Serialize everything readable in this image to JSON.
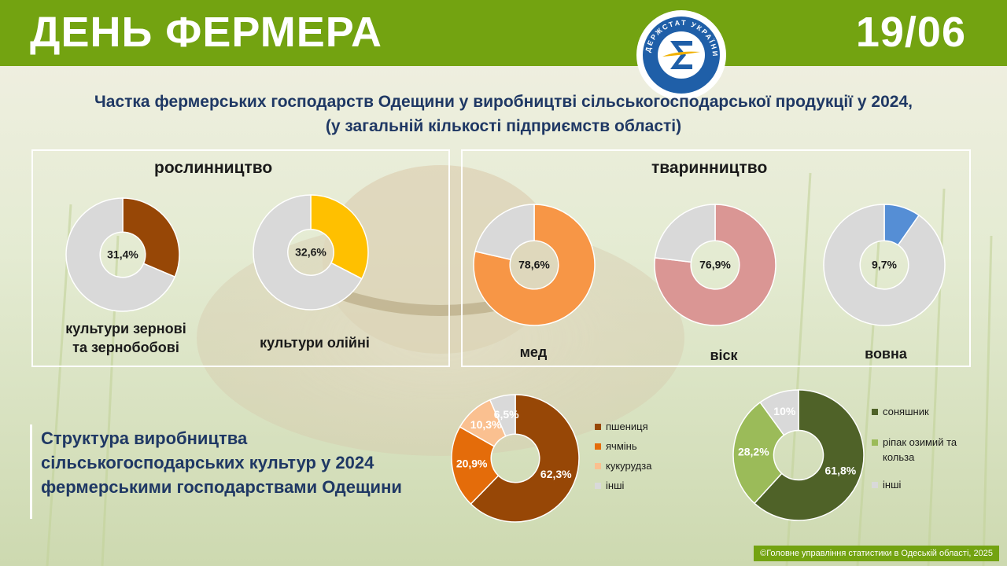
{
  "header": {
    "title": "ДЕНЬ ФЕРМЕРА",
    "date": "19/06",
    "logo_text": "ДЕРЖСТАТ УКРАЇНИ"
  },
  "main_title": {
    "line1": "Частка фермерських господарств Одещини у виробництві сільськогосподарської продукції у 2024,",
    "line2": "(у загальній кількості підприємств області)"
  },
  "sections": {
    "plant": "рослинництво",
    "animal": "тваринництво"
  },
  "structure_title": {
    "line1": "Структура виробництва",
    "line2": "сільськогосподарських культур у 2024",
    "line3": "фермерськими господарствами Одещини"
  },
  "footer": "©Головне управління статистики в Одеській області, 2025",
  "colors": {
    "header": "#73a311",
    "title": "#1f3864"
  },
  "chart_data": [
    {
      "type": "pie",
      "id": "grain",
      "label_line1": "культури  зернові",
      "label_line2": "та зернобобові",
      "value": 31.4,
      "value_label": "31,4%",
      "color": "#974706",
      "rest_color": "#d9d9d9"
    },
    {
      "type": "pie",
      "id": "oil",
      "label_line1": "культури  олійні",
      "value": 32.6,
      "value_label": "32,6%",
      "color": "#ffc000",
      "rest_color": "#d9d9d9"
    },
    {
      "type": "pie",
      "id": "honey",
      "label_line1": "мед",
      "value": 78.6,
      "value_label": "78,6%",
      "color": "#f79646",
      "rest_color": "#d9d9d9"
    },
    {
      "type": "pie",
      "id": "wax",
      "label_line1": "віск",
      "value": 76.9,
      "value_label": "76,9%",
      "color": "#da9694",
      "rest_color": "#d9d9d9"
    },
    {
      "type": "pie",
      "id": "wool",
      "label_line1": "вовна",
      "value": 9.7,
      "value_label": "9,7%",
      "color": "#558ed5",
      "rest_color": "#d9d9d9"
    },
    {
      "type": "pie",
      "id": "structure1",
      "categories": [
        "пшениця",
        "ячмінь",
        "кукурудза",
        "інші"
      ],
      "values": [
        62.3,
        20.9,
        10.3,
        6.5
      ],
      "value_labels": [
        "62,3%",
        "20,9%",
        "10,3%",
        "6,5%"
      ],
      "colors": [
        "#974706",
        "#e46c0a",
        "#fac090",
        "#d9d9d9"
      ]
    },
    {
      "type": "pie",
      "id": "structure2",
      "categories": [
        "соняшник",
        "ріпак озимий та кольза",
        "інші"
      ],
      "values": [
        61.8,
        28.2,
        10
      ],
      "value_labels": [
        "61,8%",
        "28,2%",
        "10%"
      ],
      "colors": [
        "#4f6228",
        "#9bbb59",
        "#d9d9d9"
      ]
    }
  ]
}
